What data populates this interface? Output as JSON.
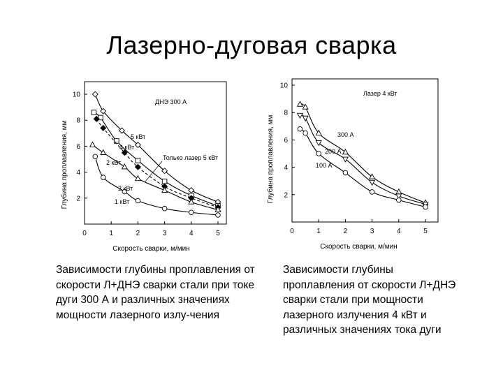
{
  "title": "Лазерно-дуговая сварка",
  "captions": {
    "left": "Зависимости глубины проплавления от скорости Л+ДНЭ сварки стали при токе дуги 300 А и различных значениях мощности лазерного излу-чения",
    "right": "Зависимости глубины проплавления от скорости Л+ДНЭ сварки стали при мощности лазерного излучения 4 кВт и различных значениях тока дуги"
  },
  "chart_data": [
    {
      "type": "line",
      "xlabel": "Скорость сварки, м/мин",
      "ylabel": "Глубина проплавления, мм",
      "xlim": [
        0,
        5
      ],
      "ylim": [
        0,
        10
      ],
      "xticks": [
        0,
        1,
        2,
        3,
        4,
        5
      ],
      "yticks": [
        2,
        4,
        6,
        8,
        10
      ],
      "annotations": [
        "ДНЭ 300 А",
        "Только лазер 5 кВт"
      ],
      "series": [
        {
          "name": "5 кВт",
          "marker": "diamond-open",
          "dashed": false,
          "x": [
            0.4,
            0.7,
            1.4,
            2.0,
            3.0,
            4.0,
            5.0
          ],
          "y": [
            10.0,
            8.7,
            7.2,
            6.1,
            4.1,
            2.6,
            1.7
          ]
        },
        {
          "name": "4 кВт",
          "marker": "square-open",
          "dashed": false,
          "x": [
            0.35,
            0.6,
            1.2,
            2.0,
            3.0,
            4.0,
            5.0
          ],
          "y": [
            8.6,
            8.2,
            6.4,
            4.9,
            3.3,
            2.2,
            1.4
          ]
        },
        {
          "name": "Только лазер 5 кВт",
          "marker": "diamond-filled",
          "dashed": true,
          "x": [
            0.45,
            0.7,
            1.5,
            2.0,
            3.0,
            4.0,
            5.0
          ],
          "y": [
            8.1,
            7.4,
            5.5,
            4.4,
            2.9,
            2.0,
            1.3
          ]
        },
        {
          "name": "2 кВт",
          "marker": "triangle-open",
          "dashed": false,
          "x": [
            0.3,
            0.7,
            1.5,
            2.0,
            3.0,
            4.0,
            5.0
          ],
          "y": [
            6.1,
            5.5,
            4.4,
            3.5,
            2.6,
            1.7,
            1.1
          ]
        },
        {
          "name": "1 кВт",
          "marker": "circle-open",
          "dashed": false,
          "x": [
            0.4,
            0.7,
            1.5,
            2.0,
            3.0,
            4.0,
            5.0
          ],
          "y": [
            5.2,
            3.6,
            2.5,
            1.8,
            1.2,
            0.9,
            0.7
          ]
        }
      ]
    },
    {
      "type": "line",
      "xlabel": "Скорость сварки, м/мин",
      "ylabel": "Глубина проплавления, мм",
      "xlim": [
        0,
        5
      ],
      "ylim": [
        0,
        10
      ],
      "xticks": [
        0,
        1,
        2,
        3,
        4,
        5
      ],
      "yticks": [
        2,
        4,
        6,
        8,
        10
      ],
      "annotations": [
        "Лазер 4 кВт"
      ],
      "series": [
        {
          "name": "300 А",
          "marker": "triangle-up-open",
          "dashed": false,
          "x": [
            0.3,
            0.5,
            1.0,
            2.0,
            3.0,
            4.0,
            5.0
          ],
          "y": [
            8.6,
            8.4,
            6.5,
            5.1,
            3.3,
            2.2,
            1.4
          ]
        },
        {
          "name": "200 А",
          "marker": "triangle-down-open",
          "dashed": false,
          "x": [
            0.3,
            0.5,
            1.0,
            2.0,
            3.0,
            4.0,
            5.0
          ],
          "y": [
            7.8,
            7.6,
            5.8,
            4.6,
            2.9,
            1.9,
            1.3
          ]
        },
        {
          "name": "100 А",
          "marker": "circle-open",
          "dashed": false,
          "x": [
            0.3,
            0.5,
            1.0,
            2.0,
            3.0,
            4.0,
            5.0
          ],
          "y": [
            6.8,
            6.5,
            5.0,
            3.6,
            2.2,
            1.6,
            1.1
          ]
        }
      ]
    }
  ]
}
